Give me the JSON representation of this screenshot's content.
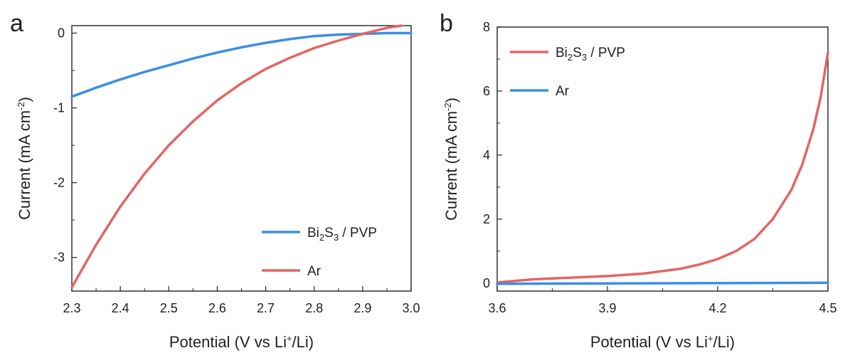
{
  "chart_data": [
    {
      "panel": "a",
      "type": "line",
      "xlabel": {
        "main": "Potential (V vs Li",
        "sup": "+",
        "tail": "/Li)"
      },
      "ylabel": {
        "main": "Current (mA cm",
        "sup": "-2",
        "tail": ")"
      },
      "xlim": [
        2.3,
        3.0
      ],
      "ylim": [
        -3.45,
        0.1
      ],
      "xticks": [
        "2.3",
        "2.4",
        "2.5",
        "2.6",
        "2.7",
        "2.8",
        "2.9",
        "3.0"
      ],
      "yticks": [
        "0",
        "-1",
        "-2",
        "-3"
      ],
      "legend_position": "bottom-right",
      "series": [
        {
          "name_parts": [
            "Bi",
            "2",
            "S",
            "3",
            " / PVP"
          ],
          "color": "#3a8ee6",
          "x": [
            2.3,
            2.35,
            2.4,
            2.45,
            2.5,
            2.55,
            2.6,
            2.65,
            2.7,
            2.75,
            2.8,
            2.85,
            2.9,
            2.95,
            3.0
          ],
          "y": [
            -0.85,
            -0.73,
            -0.62,
            -0.52,
            -0.43,
            -0.34,
            -0.26,
            -0.19,
            -0.13,
            -0.08,
            -0.04,
            -0.02,
            -0.01,
            0.0,
            0.0
          ]
        },
        {
          "name_parts": [
            "Ar"
          ],
          "color": "#e46464",
          "x": [
            2.3,
            2.35,
            2.4,
            2.45,
            2.5,
            2.55,
            2.6,
            2.65,
            2.7,
            2.75,
            2.8,
            2.85,
            2.9,
            2.95,
            2.98
          ],
          "y": [
            -3.4,
            -2.83,
            -2.32,
            -1.88,
            -1.5,
            -1.18,
            -0.9,
            -0.67,
            -0.48,
            -0.33,
            -0.2,
            -0.1,
            -0.01,
            0.07,
            0.1
          ]
        }
      ]
    },
    {
      "panel": "b",
      "type": "line",
      "xlabel": {
        "main": "Potential (V vs Li",
        "sup": "+",
        "tail": "/Li)"
      },
      "ylabel": {
        "main": "Current (mA cm",
        "sup": "-2",
        "tail": ")"
      },
      "xlim": [
        3.6,
        4.5
      ],
      "ylim": [
        -0.25,
        8
      ],
      "xticks": [
        "3.6",
        "3.9",
        "4.2",
        "4.5"
      ],
      "yticks": [
        "0",
        "2",
        "4",
        "6",
        "8"
      ],
      "legend_position": "top-left",
      "series": [
        {
          "name_parts": [
            "Bi",
            "2",
            "S",
            "3",
            " / PVP"
          ],
          "color": "#e46464",
          "x": [
            3.6,
            3.7,
            3.8,
            3.9,
            4.0,
            4.1,
            4.15,
            4.2,
            4.25,
            4.3,
            4.35,
            4.4,
            4.43,
            4.46,
            4.48,
            4.5
          ],
          "y": [
            0.02,
            0.12,
            0.17,
            0.22,
            0.3,
            0.45,
            0.58,
            0.75,
            1.0,
            1.38,
            2.0,
            2.9,
            3.7,
            4.8,
            5.8,
            7.2
          ]
        },
        {
          "name_parts": [
            "Ar"
          ],
          "color": "#3a8ee6",
          "x": [
            3.6,
            3.9,
            4.2,
            4.5
          ],
          "y": [
            -0.02,
            -0.01,
            0.0,
            0.01
          ]
        }
      ]
    }
  ]
}
